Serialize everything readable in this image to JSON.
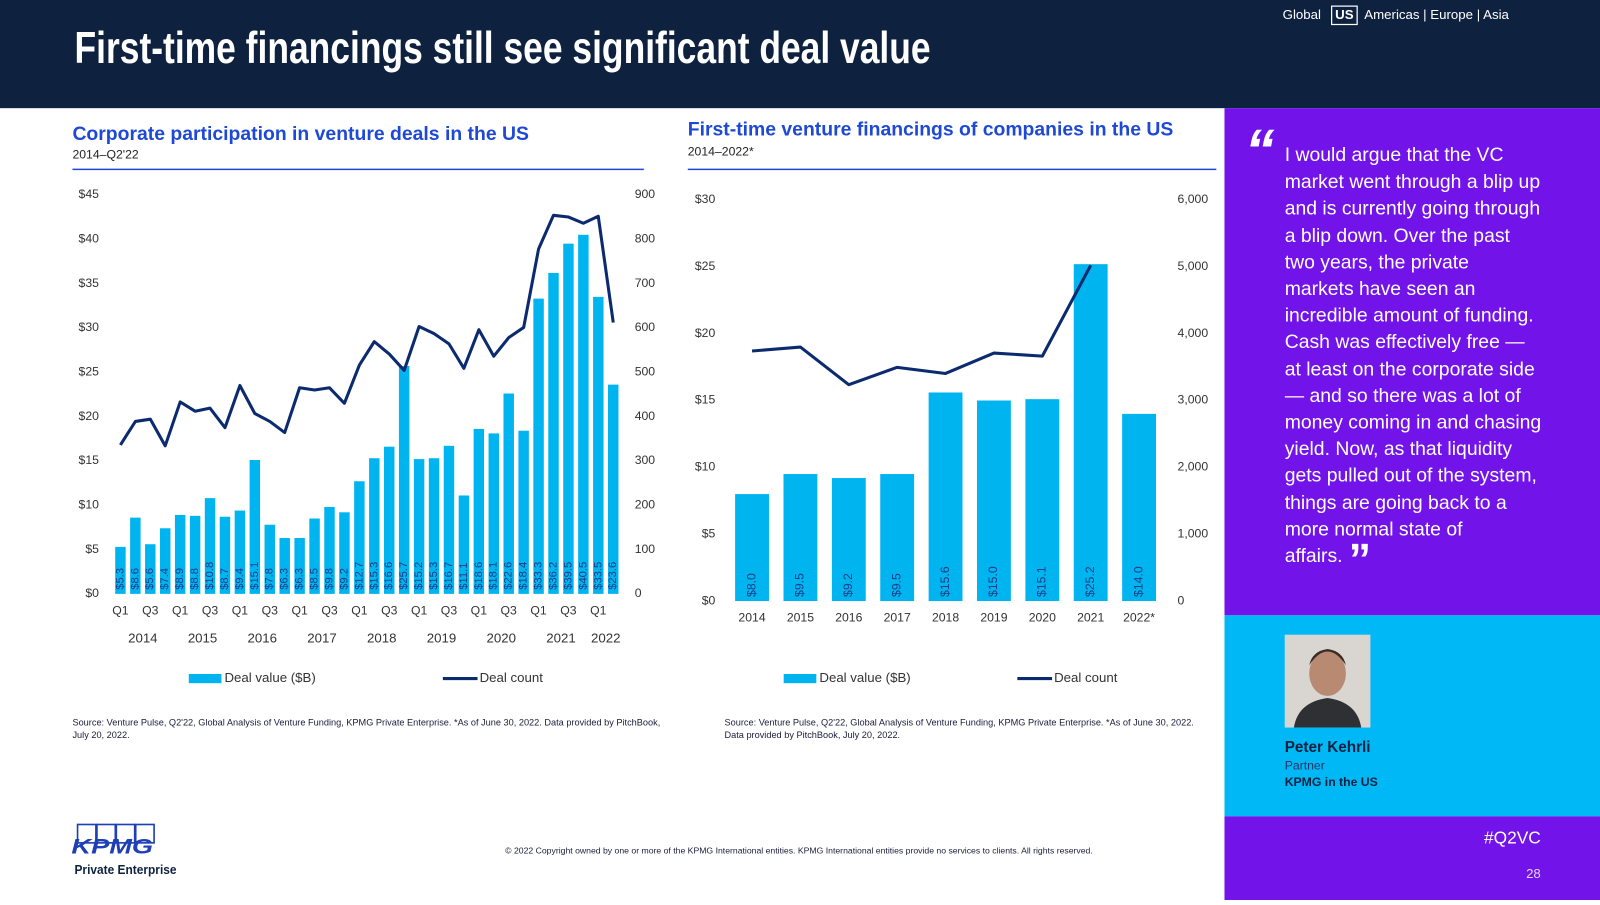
{
  "header": {
    "title": "First-time financings still see significant deal value"
  },
  "nav": {
    "global": "Global",
    "current": "US",
    "others": "Americas | Europe | Asia"
  },
  "chart_data": [
    {
      "type": "bar",
      "title": "Corporate participation in venture deals in the US",
      "subtitle": "2014–Q2'22",
      "categories": [
        "Q1",
        null,
        "Q3",
        null,
        "Q1",
        null,
        "Q3",
        null,
        "Q1",
        null,
        "Q3",
        null,
        "Q1",
        null,
        "Q3",
        null,
        "Q1",
        null,
        "Q3",
        null,
        "Q1",
        null,
        "Q3",
        null,
        "Q1",
        null,
        "Q3",
        null,
        "Q1",
        null,
        "Q3",
        null,
        "Q1",
        null
      ],
      "x_groups": [
        "2014",
        "2015",
        "2016",
        "2017",
        "2018",
        "2019",
        "2020",
        "2021",
        "2022"
      ],
      "series": [
        {
          "name": "Deal value ($B)",
          "color": "#00b4f0",
          "values": [
            5.3,
            8.6,
            5.6,
            7.4,
            8.9,
            8.8,
            10.8,
            8.7,
            9.4,
            15.1,
            7.8,
            6.3,
            6.3,
            8.5,
            9.8,
            9.2,
            12.7,
            15.3,
            16.6,
            25.7,
            15.2,
            15.3,
            16.7,
            11.1,
            18.6,
            18.1,
            22.6,
            18.4,
            33.3,
            36.2,
            39.5,
            40.5,
            33.5,
            23.6
          ],
          "value_labels": [
            "$5.3",
            "$8.6",
            "$5.6",
            "$7.4",
            "$8.9",
            "$8.8",
            "$10.8",
            "$8.7",
            "$9.4",
            "$15.1",
            "$7.8",
            "$6.3",
            "$6.3",
            "$8.5",
            "$9.8",
            "$9.2",
            "$12.7",
            "$15.3",
            "$16.6",
            "$25.7",
            "$15.2",
            "$15.3",
            "$16.7",
            "$11.1",
            "$18.6",
            "$18.1",
            "$22.6",
            "$18.4",
            "$33.3",
            "$36.2",
            "$39.5",
            "$40.5",
            "$33.5",
            "$23.6"
          ]
        },
        {
          "name": "Deal count",
          "color": "#0c2a6e",
          "axis": "y2",
          "values": [
            336,
            389,
            394,
            334,
            433,
            412,
            419,
            375,
            470,
            407,
            389,
            364,
            465,
            460,
            465,
            430,
            516,
            569,
            541,
            504,
            603,
            587,
            564,
            509,
            596,
            536,
            578,
            601,
            778,
            854,
            850,
            836,
            852,
            612
          ]
        }
      ],
      "ylim": [
        0,
        45
      ],
      "yticks": [
        {
          "value": 0,
          "label": "$0"
        },
        {
          "value": 5,
          "label": "$5"
        },
        {
          "value": 10,
          "label": "$10"
        },
        {
          "value": 15,
          "label": "$15"
        },
        {
          "value": 20,
          "label": "$20"
        },
        {
          "value": 25,
          "label": "$25"
        },
        {
          "value": 30,
          "label": "$30"
        },
        {
          "value": 35,
          "label": "$35"
        },
        {
          "value": 40,
          "label": "$40"
        },
        {
          "value": 45,
          "label": "$45"
        }
      ],
      "y2lim": [
        0,
        900
      ],
      "y2ticks": [
        0,
        100,
        200,
        300,
        400,
        500,
        600,
        700,
        800,
        900
      ],
      "grid": false,
      "source": "Source: Venture Pulse, Q2'22, Global Analysis of Venture Funding, KPMG Private Enterprise. *As of June 30, 2022. Data provided by PitchBook, July 20, 2022."
    },
    {
      "type": "bar",
      "title": "First-time venture financings of companies in the US",
      "subtitle": "2014–2022*",
      "categories": [
        "2014",
        "2015",
        "2016",
        "2017",
        "2018",
        "2019",
        "2020",
        "2021",
        "2022*"
      ],
      "series": [
        {
          "name": "Deal value ($B)",
          "color": "#00b4f0",
          "values": [
            8.0,
            9.5,
            9.2,
            9.5,
            15.6,
            15.0,
            15.1,
            25.2,
            14.0
          ],
          "value_labels": [
            "$8.0",
            "$9.5",
            "$9.2",
            "$9.5",
            "$15.6",
            "$15.0",
            "$15.1",
            "$25.2",
            "$14.0"
          ]
        },
        {
          "name": "Deal count",
          "color": "#0c2a6e",
          "axis": "y2",
          "values": [
            3740,
            3800,
            3237,
            3496,
            3405,
            3710,
            3664,
            5023,
            null
          ]
        }
      ],
      "ylim": [
        0,
        30
      ],
      "yticks": [
        {
          "value": 0,
          "label": "$0"
        },
        {
          "value": 5,
          "label": "$5"
        },
        {
          "value": 10,
          "label": "$10"
        },
        {
          "value": 15,
          "label": "$15"
        },
        {
          "value": 20,
          "label": "$20"
        },
        {
          "value": 25,
          "label": "$25"
        },
        {
          "value": 30,
          "label": "$30"
        }
      ],
      "y2lim": [
        0,
        6000
      ],
      "y2ticks": [
        0,
        {
          "value": 1000,
          "label": "1,000"
        },
        {
          "value": 2000,
          "label": "2,000"
        },
        {
          "value": 3000,
          "label": "3,000"
        },
        {
          "value": 4000,
          "label": "4,000"
        },
        {
          "value": 5000,
          "label": "5,000"
        },
        {
          "value": 6000,
          "label": "6,000"
        }
      ],
      "grid": false,
      "source": "Source: Venture Pulse, Q2'22, Global Analysis of Venture Funding, KPMG Private Enterprise. *As of June 30, 2022. Data provided by PitchBook, July 20, 2022."
    }
  ],
  "quote": {
    "open_mark": "“",
    "text": "I would argue that the VC market went through a blip up and is currently going through a blip down. Over the past two years, the private markets have seen an incredible amount of funding. Cash was effectively free — at least on the corporate side — and so there was a lot of money coming in and chasing yield. Now, as that liquidity gets pulled out of the system, things are going back to a more normal state of affairs.",
    "close_mark": "”"
  },
  "person": {
    "name": "Peter Kehrli",
    "role": "Partner",
    "org": "KPMG in the US"
  },
  "footer": {
    "copyright": "© 2022 Copyright owned by one or more of the KPMG International entities. KPMG International entities provide no services to clients. All rights reserved.",
    "hashtag": "#Q2VC",
    "page": "28",
    "logo": "KPMG",
    "logo_sub": "Private Enterprise"
  }
}
